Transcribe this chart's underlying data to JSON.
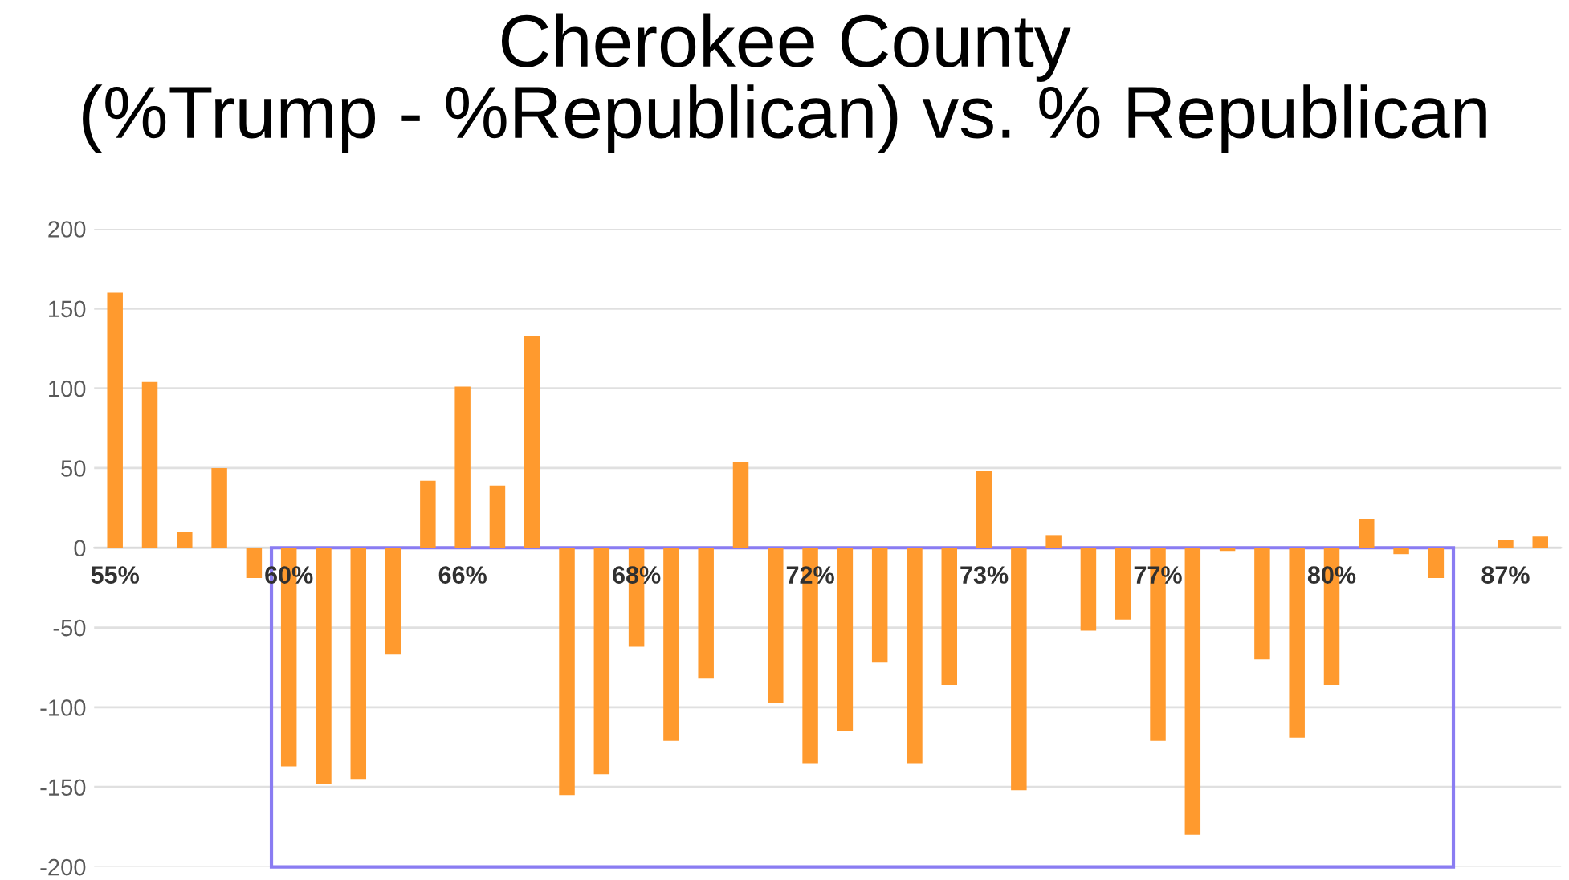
{
  "chart_data": {
    "type": "bar",
    "title": "Cherokee County\n(%Trump - %Republican) vs. % Republican",
    "categories": [
      "55%",
      null,
      null,
      null,
      null,
      "60%",
      null,
      null,
      null,
      null,
      "66%",
      null,
      null,
      null,
      null,
      "68%",
      null,
      null,
      null,
      null,
      "72%",
      null,
      null,
      null,
      null,
      "73%",
      null,
      null,
      null,
      null,
      "77%",
      null,
      null,
      null,
      null,
      "80%",
      null,
      null,
      null,
      null,
      "87%",
      null
    ],
    "values": [
      160,
      104,
      10,
      50,
      -19,
      -137,
      -148,
      -145,
      -67,
      42,
      101,
      39,
      133,
      -155,
      -142,
      -62,
      -121,
      -82,
      54,
      -97,
      -135,
      -115,
      -72,
      -135,
      -86,
      48,
      -152,
      8,
      -52,
      -45,
      -121,
      -180,
      -2,
      -70,
      -119,
      -86,
      18,
      -4,
      -19,
      0,
      5,
      7
    ],
    "color": "#ff9a2e",
    "ylim": [
      -200,
      200
    ],
    "yticks": [
      -200,
      -150,
      -100,
      -50,
      0,
      50,
      100,
      150,
      200
    ],
    "grid": "y"
  }
}
